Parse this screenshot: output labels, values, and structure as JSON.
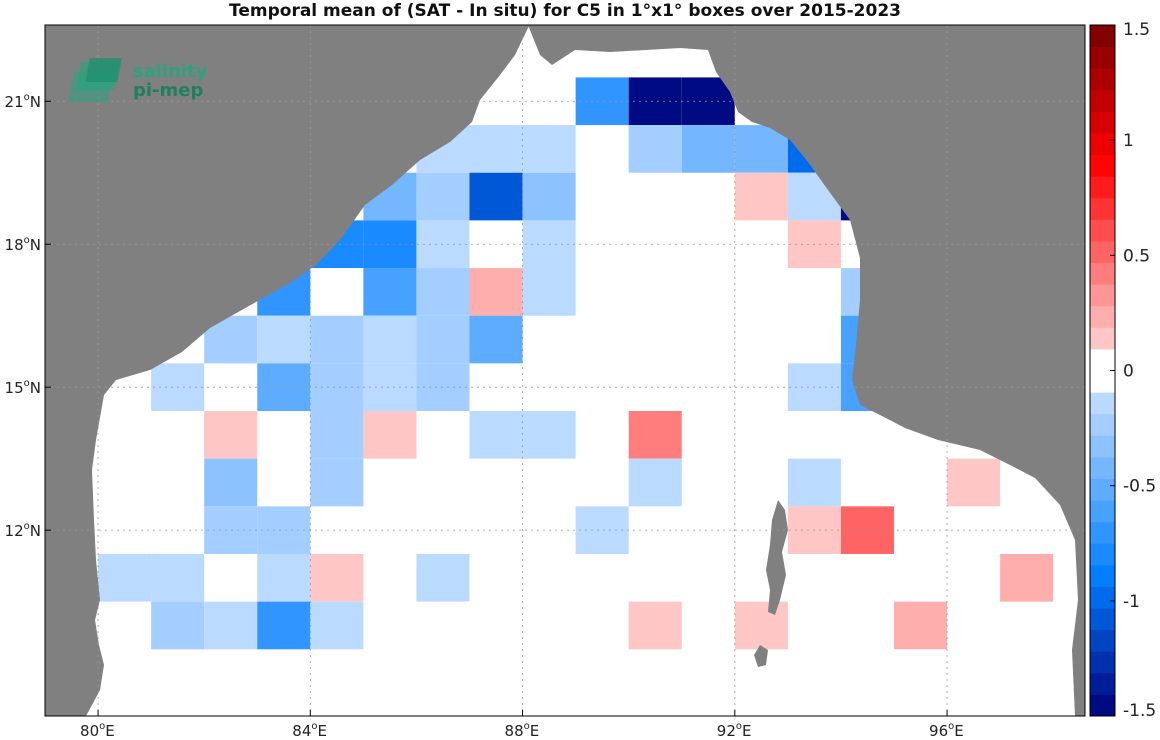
{
  "title": "Temporal mean of (SAT - In situ) for C5 in 1°x1° boxes over 2015-2023",
  "logo": {
    "line1": "salinity",
    "line2": "pi-mep",
    "color": "#2aa37f"
  },
  "map": {
    "lon_range": [
      79,
      98.6
    ],
    "lat_range": [
      8.1,
      22.6
    ],
    "land_color": "#808080",
    "ocean_color": "#ffffff",
    "grid": true,
    "x_ticks": [
      {
        "value": 80,
        "deg": "80",
        "hemi": "E"
      },
      {
        "value": 84,
        "deg": "84",
        "hemi": "E"
      },
      {
        "value": 88,
        "deg": "88",
        "hemi": "E"
      },
      {
        "value": 92,
        "deg": "92",
        "hemi": "E"
      },
      {
        "value": 96,
        "deg": "96",
        "hemi": "E"
      }
    ],
    "y_ticks": [
      {
        "value": 12,
        "deg": "12",
        "hemi": "N"
      },
      {
        "value": 15,
        "deg": "15",
        "hemi": "N"
      },
      {
        "value": 18,
        "deg": "18",
        "hemi": "N"
      },
      {
        "value": 21,
        "deg": "21",
        "hemi": "N"
      }
    ]
  },
  "colorbar": {
    "range": [
      -1.5,
      1.5
    ],
    "ticks": [
      {
        "value": 1.5,
        "label": "1.5"
      },
      {
        "value": 1,
        "label": "1"
      },
      {
        "value": 0.5,
        "label": "0.5"
      },
      {
        "value": 0,
        "label": "0"
      },
      {
        "value": -0.5,
        "label": "-0.5"
      },
      {
        "value": -1,
        "label": "-1"
      },
      {
        "value": -1.5,
        "label": "-1.5"
      }
    ],
    "position": "right"
  },
  "chart_data": {
    "type": "heatmap",
    "title": "Temporal mean of (SAT - In situ) for C5 in 1°x1° boxes over 2015-2023",
    "xlabel": "",
    "ylabel": "",
    "cell_size_deg": 1,
    "value_range": [
      -1.5,
      1.5
    ],
    "cells": [
      {
        "lon": 89.5,
        "lat": 21,
        "value": -0.75
      },
      {
        "lon": 90.5,
        "lat": 21,
        "value": -1.45
      },
      {
        "lon": 91.5,
        "lat": 21,
        "value": -1.45
      },
      {
        "lon": 86.5,
        "lat": 20,
        "value": -0.1
      },
      {
        "lon": 87.5,
        "lat": 20,
        "value": -0.1
      },
      {
        "lon": 88.5,
        "lat": 20,
        "value": -0.1
      },
      {
        "lon": 90.5,
        "lat": 20,
        "value": -0.25
      },
      {
        "lon": 91.5,
        "lat": 20,
        "value": -0.45
      },
      {
        "lon": 92.5,
        "lat": 20,
        "value": -0.45
      },
      {
        "lon": 93.5,
        "lat": 20,
        "value": -0.95
      },
      {
        "lon": 85.5,
        "lat": 19,
        "value": -0.4
      },
      {
        "lon": 86.5,
        "lat": 19,
        "value": -0.25
      },
      {
        "lon": 87.5,
        "lat": 19,
        "value": -1.1
      },
      {
        "lon": 88.5,
        "lat": 19,
        "value": -0.35
      },
      {
        "lon": 92.5,
        "lat": 19,
        "value": 0.12
      },
      {
        "lon": 93.5,
        "lat": 19,
        "value": -0.1
      },
      {
        "lon": 94.5,
        "lat": 19,
        "value": -1.45
      },
      {
        "lon": 84.5,
        "lat": 18,
        "value": -0.8
      },
      {
        "lon": 85.5,
        "lat": 18,
        "value": -0.8
      },
      {
        "lon": 86.5,
        "lat": 18,
        "value": -0.1
      },
      {
        "lon": 88.5,
        "lat": 18,
        "value": -0.1
      },
      {
        "lon": 93.5,
        "lat": 18,
        "value": 0.12
      },
      {
        "lon": 83.5,
        "lat": 17,
        "value": -0.7
      },
      {
        "lon": 85.5,
        "lat": 17,
        "value": -0.6
      },
      {
        "lon": 86.5,
        "lat": 17,
        "value": -0.25
      },
      {
        "lon": 87.5,
        "lat": 17,
        "value": 0.25
      },
      {
        "lon": 88.5,
        "lat": 17,
        "value": -0.1
      },
      {
        "lon": 94.5,
        "lat": 17,
        "value": -0.25
      },
      {
        "lon": 82.5,
        "lat": 16,
        "value": -0.25
      },
      {
        "lon": 83.5,
        "lat": 16,
        "value": -0.15
      },
      {
        "lon": 84.5,
        "lat": 16,
        "value": -0.2
      },
      {
        "lon": 85.5,
        "lat": 16,
        "value": -0.1
      },
      {
        "lon": 86.5,
        "lat": 16,
        "value": -0.25
      },
      {
        "lon": 87.5,
        "lat": 16,
        "value": -0.5
      },
      {
        "lon": 94.5,
        "lat": 16,
        "value": -0.6
      },
      {
        "lon": 81.5,
        "lat": 15,
        "value": -0.1
      },
      {
        "lon": 83.5,
        "lat": 15,
        "value": -0.55
      },
      {
        "lon": 84.5,
        "lat": 15,
        "value": -0.2
      },
      {
        "lon": 85.5,
        "lat": 15,
        "value": -0.1
      },
      {
        "lon": 86.5,
        "lat": 15,
        "value": -0.25
      },
      {
        "lon": 93.5,
        "lat": 15,
        "value": -0.1
      },
      {
        "lon": 94.5,
        "lat": 15,
        "value": -0.65
      },
      {
        "lon": 82.5,
        "lat": 14,
        "value": 0.15
      },
      {
        "lon": 84.5,
        "lat": 14,
        "value": -0.2
      },
      {
        "lon": 85.5,
        "lat": 14,
        "value": 0.12
      },
      {
        "lon": 87.5,
        "lat": 14,
        "value": -0.1
      },
      {
        "lon": 88.5,
        "lat": 14,
        "value": -0.1
      },
      {
        "lon": 90.5,
        "lat": 14,
        "value": 0.45
      },
      {
        "lon": 82.5,
        "lat": 13,
        "value": -0.35
      },
      {
        "lon": 84.5,
        "lat": 13,
        "value": -0.2
      },
      {
        "lon": 90.5,
        "lat": 13,
        "value": -0.1
      },
      {
        "lon": 93.5,
        "lat": 13,
        "value": -0.1
      },
      {
        "lon": 96.5,
        "lat": 13,
        "value": 0.12
      },
      {
        "lon": 82.5,
        "lat": 12,
        "value": -0.25
      },
      {
        "lon": 83.5,
        "lat": 12,
        "value": -0.25
      },
      {
        "lon": 89.5,
        "lat": 12,
        "value": -0.1
      },
      {
        "lon": 93.5,
        "lat": 12,
        "value": 0.12
      },
      {
        "lon": 94.5,
        "lat": 12,
        "value": 0.55
      },
      {
        "lon": 80.5,
        "lat": 11,
        "value": -0.1
      },
      {
        "lon": 81.5,
        "lat": 11,
        "value": -0.1
      },
      {
        "lon": 83.5,
        "lat": 11,
        "value": -0.1
      },
      {
        "lon": 84.5,
        "lat": 11,
        "value": 0.12
      },
      {
        "lon": 86.5,
        "lat": 11,
        "value": -0.1
      },
      {
        "lon": 97.5,
        "lat": 11,
        "value": 0.25
      },
      {
        "lon": 81.5,
        "lat": 10,
        "value": -0.25
      },
      {
        "lon": 82.5,
        "lat": 10,
        "value": -0.1
      },
      {
        "lon": 83.5,
        "lat": 10,
        "value": -0.75
      },
      {
        "lon": 84.5,
        "lat": 10,
        "value": -0.1
      },
      {
        "lon": 90.5,
        "lat": 10,
        "value": 0.12
      },
      {
        "lon": 92.5,
        "lat": 10,
        "value": 0.12
      },
      {
        "lon": 95.5,
        "lat": 10,
        "value": 0.2
      }
    ]
  }
}
